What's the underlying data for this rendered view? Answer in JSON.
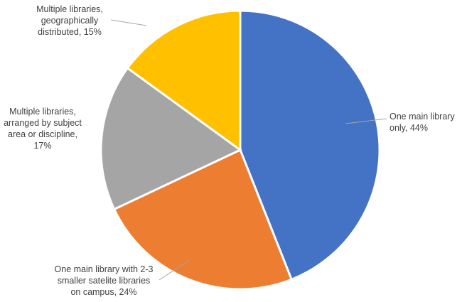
{
  "chart_data": {
    "type": "pie",
    "title": "",
    "slices": [
      {
        "label": [
          "One main library",
          "only, 44%"
        ],
        "value": 44,
        "color": "#4472C4"
      },
      {
        "label": [
          "One main library with 2-3",
          "smaller satelite libraries",
          "on campus, 24%"
        ],
        "value": 24,
        "color": "#ED7D31"
      },
      {
        "label": [
          "Multiple libraries,",
          "arranged by subject",
          "area or discipline,",
          "17%"
        ],
        "value": 17,
        "color": "#A5A5A5"
      },
      {
        "label": [
          "Multiple libraries,",
          "geographically",
          "distributed, 15%"
        ],
        "value": 15,
        "color": "#FFC000"
      }
    ]
  }
}
